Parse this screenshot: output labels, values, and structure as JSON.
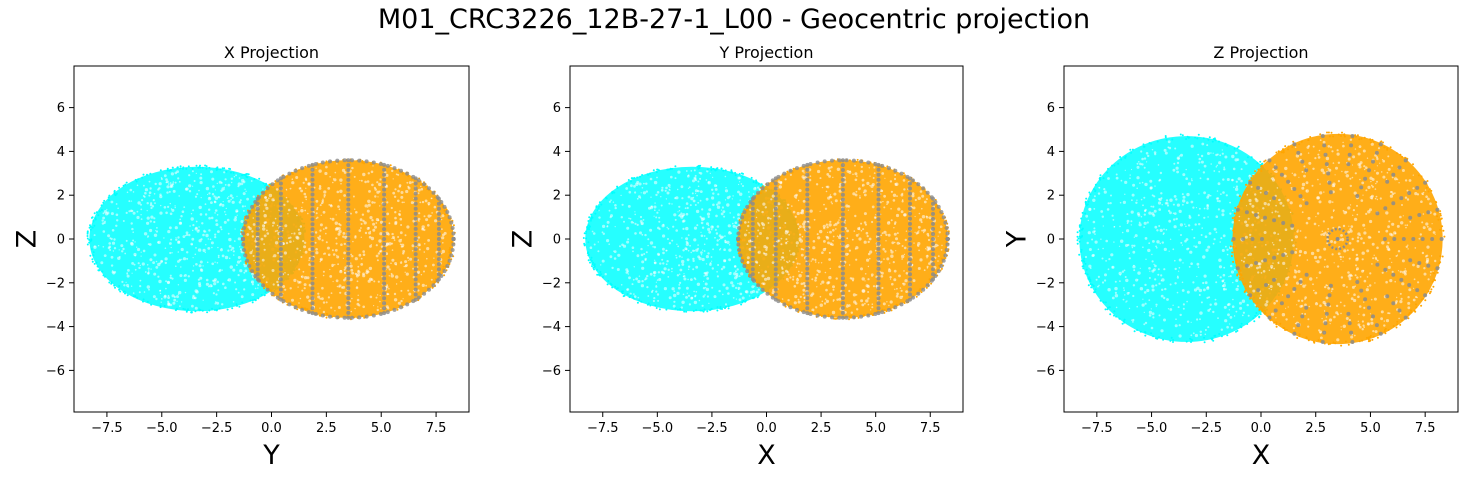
{
  "figure": {
    "title": "M01_CRC3226_12B-27-1_L00 - Geocentric projection"
  },
  "colors": {
    "cyan_cloud": "#00ffff",
    "orange_cloud": "#ffa500",
    "marker_points": "#8c8c8c",
    "frame": "#000000"
  },
  "chart_data": [
    {
      "type": "scatter",
      "title": "X Projection",
      "xlabel": "Y",
      "ylabel": "Z",
      "xlim": [
        -9.0,
        9.0
      ],
      "ylim": [
        -7.9,
        7.9
      ],
      "xticks": [
        "−7.5",
        "−5.0",
        "−2.5",
        "0.0",
        "2.5",
        "5.0",
        "7.5"
      ],
      "xtick_values": [
        -7.5,
        -5.0,
        -2.5,
        0.0,
        2.5,
        5.0,
        7.5
      ],
      "yticks": [
        "−6",
        "−4",
        "−2",
        "0",
        "2",
        "4",
        "6"
      ],
      "ytick_values": [
        -6,
        -4,
        -2,
        0,
        2,
        4,
        6
      ],
      "series": [
        {
          "color": "cyan",
          "shape": "ellipse",
          "center": [
            -3.4,
            0.0
          ],
          "radii": [
            4.9,
            3.3
          ]
        },
        {
          "color": "orange",
          "shape": "ellipse",
          "center": [
            3.5,
            0.0
          ],
          "radii": [
            4.8,
            3.6
          ]
        },
        {
          "color": "gray",
          "shape": "meridians",
          "center": [
            3.5,
            0.0
          ],
          "radii": [
            4.8,
            3.6
          ]
        }
      ]
    },
    {
      "type": "scatter",
      "title": "Y Projection",
      "xlabel": "X",
      "ylabel": "Z",
      "xlim": [
        -9.0,
        9.0
      ],
      "ylim": [
        -7.9,
        7.9
      ],
      "xticks": [
        "−7.5",
        "−5.0",
        "−2.5",
        "0.0",
        "2.5",
        "5.0",
        "7.5"
      ],
      "xtick_values": [
        -7.5,
        -5.0,
        -2.5,
        0.0,
        2.5,
        5.0,
        7.5
      ],
      "yticks": [
        "−6",
        "−4",
        "−2",
        "0",
        "2",
        "4",
        "6"
      ],
      "ytick_values": [
        -6,
        -4,
        -2,
        0,
        2,
        4,
        6
      ],
      "series": [
        {
          "color": "cyan",
          "shape": "ellipse",
          "center": [
            -3.4,
            0.0
          ],
          "radii": [
            4.9,
            3.3
          ]
        },
        {
          "color": "orange",
          "shape": "ellipse",
          "center": [
            3.5,
            0.0
          ],
          "radii": [
            4.8,
            3.6
          ]
        },
        {
          "color": "gray",
          "shape": "meridians",
          "center": [
            3.5,
            0.0
          ],
          "radii": [
            4.8,
            3.6
          ]
        }
      ]
    },
    {
      "type": "scatter",
      "title": "Z Projection",
      "xlabel": "X",
      "ylabel": "Y",
      "xlim": [
        -9.0,
        9.0
      ],
      "ylim": [
        -7.9,
        7.9
      ],
      "xticks": [
        "−7.5",
        "−5.0",
        "−2.5",
        "0.0",
        "2.5",
        "5.0",
        "7.5"
      ],
      "xtick_values": [
        -7.5,
        -5.0,
        -2.5,
        0.0,
        2.5,
        5.0,
        7.5
      ],
      "yticks": [
        "−6",
        "−4",
        "−2",
        "0",
        "2",
        "4",
        "6"
      ],
      "ytick_values": [
        -6,
        -4,
        -2,
        0,
        2,
        4,
        6
      ],
      "series": [
        {
          "color": "cyan",
          "shape": "ellipse",
          "center": [
            -3.4,
            0.0
          ],
          "radii": [
            4.9,
            4.7
          ]
        },
        {
          "color": "orange",
          "shape": "ellipse",
          "center": [
            3.5,
            0.0
          ],
          "radii": [
            4.8,
            4.8
          ]
        },
        {
          "color": "gray",
          "shape": "radial",
          "center": [
            3.5,
            0.0
          ],
          "radii": [
            4.8,
            4.8
          ]
        }
      ]
    }
  ]
}
